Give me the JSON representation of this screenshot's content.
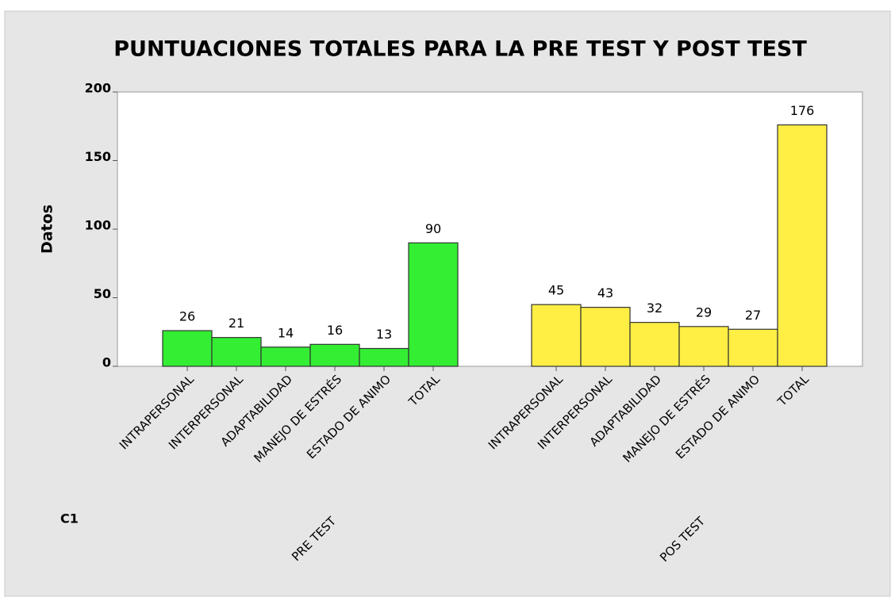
{
  "chart_data": {
    "type": "bar",
    "title": "PUNTUACIONES TOTALES PARA LA PRE TEST Y POST TEST",
    "ylabel": "Datos",
    "group_label": "C1",
    "categories": [
      "INTRAPERSONAL",
      "INTERPERSONAL",
      "ADAPTABILIDAD",
      "MANEJO DE ESTRÉS",
      "ESTADO DE ANIMO",
      "TOTAL"
    ],
    "series": [
      {
        "name": "PRE TEST",
        "color": "#33ee33",
        "values": [
          26,
          21,
          14,
          16,
          13,
          90
        ]
      },
      {
        "name": "POS TEST",
        "color": "#ffee44",
        "values": [
          45,
          43,
          32,
          29,
          27,
          176
        ]
      }
    ],
    "ylim": [
      0,
      200
    ],
    "yticks": [
      0,
      50,
      100,
      150,
      200
    ]
  }
}
